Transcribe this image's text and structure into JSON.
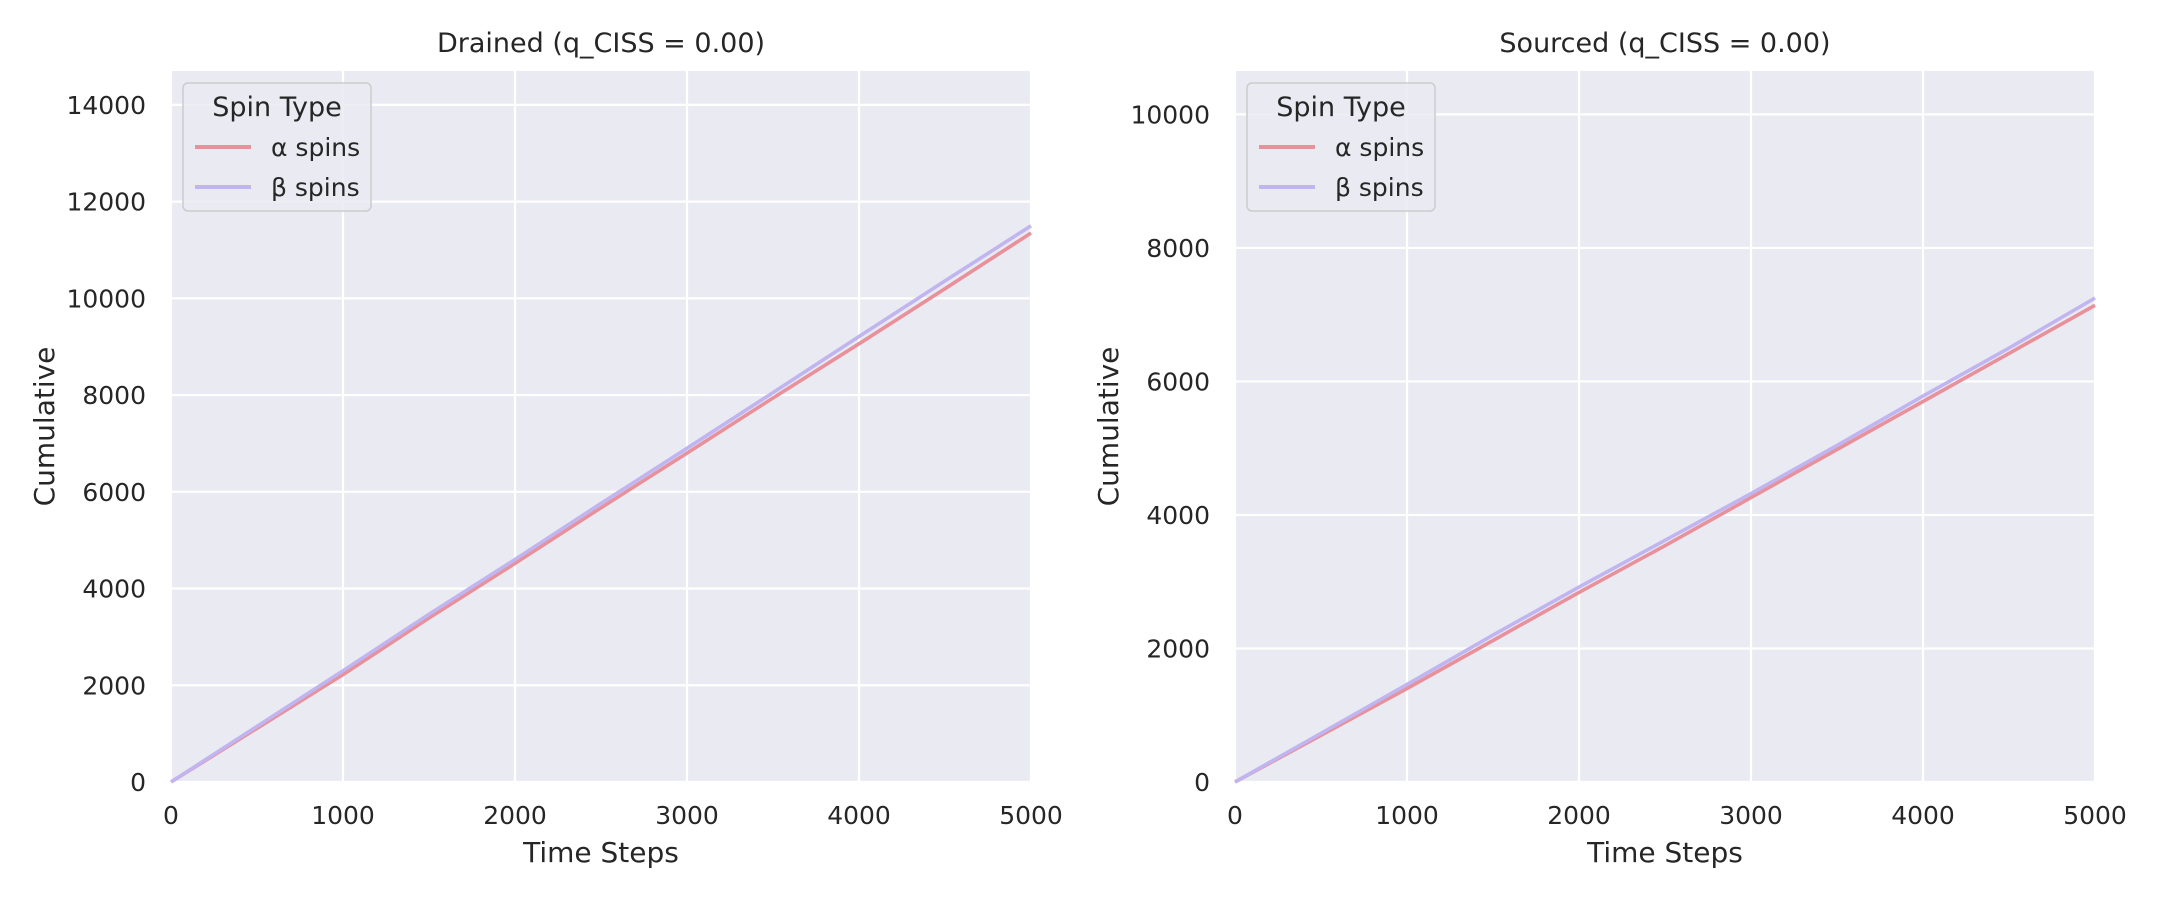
{
  "colors": {
    "alpha": "#e8919a",
    "beta": "#c0b5f0",
    "plot_background": "#eaeaf2",
    "grid": "#ffffff"
  },
  "chart_data": [
    {
      "type": "line",
      "title": "Drained (q_CISS = 0.00)",
      "xlabel": "Time Steps",
      "ylabel": "Cumulative",
      "xlim": [
        0,
        5000
      ],
      "ylim": [
        0,
        14700
      ],
      "xticks": [
        0,
        1000,
        2000,
        3000,
        4000,
        5000
      ],
      "yticks": [
        0,
        2000,
        4000,
        6000,
        8000,
        10000,
        12000,
        14000
      ],
      "grid": true,
      "legend": {
        "title": "Spin Type",
        "position": "upper left"
      },
      "series": [
        {
          "name": "α spins",
          "color": "#e8919a",
          "x": [
            0,
            500,
            1000,
            1500,
            2000,
            2500,
            3000,
            3500,
            4000,
            4500,
            5000
          ],
          "y": [
            0,
            1110,
            2220,
            3390,
            4520,
            5670,
            6800,
            7940,
            9060,
            10200,
            11350
          ]
        },
        {
          "name": "β spins",
          "color": "#c0b5f0",
          "x": [
            0,
            500,
            1000,
            1500,
            2000,
            2500,
            3000,
            3500,
            4000,
            4500,
            5000
          ],
          "y": [
            0,
            1150,
            2300,
            3470,
            4600,
            5760,
            6900,
            8050,
            9210,
            10360,
            11500
          ]
        }
      ]
    },
    {
      "type": "line",
      "title": "Sourced (q_CISS = 0.00)",
      "xlabel": "Time Steps",
      "ylabel": "Cumulative",
      "xlim": [
        0,
        5000
      ],
      "ylim": [
        0,
        10650
      ],
      "xticks": [
        0,
        1000,
        2000,
        3000,
        4000,
        5000
      ],
      "yticks": [
        0,
        2000,
        4000,
        6000,
        8000,
        10000
      ],
      "grid": true,
      "legend": {
        "title": "Spin Type",
        "position": "upper left"
      },
      "series": [
        {
          "name": "α spins",
          "color": "#e8919a",
          "x": [
            0,
            500,
            1000,
            1500,
            2000,
            2500,
            3000,
            3500,
            4000,
            4500,
            5000
          ],
          "y": [
            0,
            700,
            1400,
            2120,
            2840,
            3540,
            4260,
            4980,
            5700,
            6420,
            7140
          ]
        },
        {
          "name": "β spins",
          "color": "#c0b5f0",
          "x": [
            0,
            500,
            1000,
            1500,
            2000,
            2500,
            3000,
            3500,
            4000,
            4500,
            5000
          ],
          "y": [
            0,
            730,
            1460,
            2200,
            2920,
            3620,
            4320,
            5040,
            5780,
            6500,
            7250
          ]
        }
      ]
    }
  ]
}
